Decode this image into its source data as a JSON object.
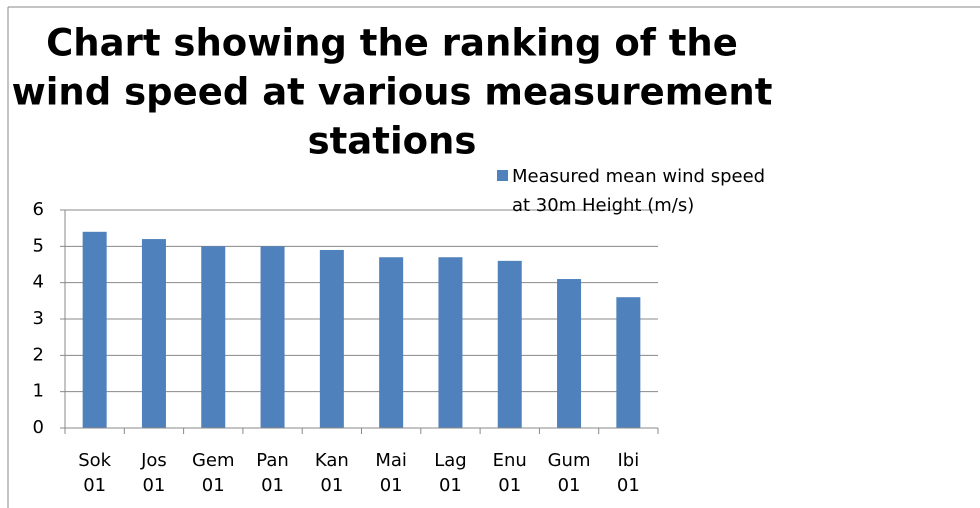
{
  "chart_data": {
    "type": "bar",
    "title_lines": [
      "Chart showing the ranking of the",
      "wind speed at various measurement",
      "stations"
    ],
    "categories": [
      "Sok 01",
      "Jos 01",
      "Gem 01",
      "Pan 01",
      "Kan 01",
      "Mai 01",
      "Lag 01",
      "Enu 01",
      "Gum 01",
      "Ibi 01"
    ],
    "series": [
      {
        "name": "Measured mean wind speed at 30m Height (m/s)",
        "color": "#4f81bd",
        "values": [
          5.4,
          5.2,
          5.0,
          5.0,
          4.9,
          4.7,
          4.7,
          4.6,
          4.1,
          3.6
        ]
      }
    ],
    "ylim": [
      0,
      6
    ],
    "yticks": [
      0,
      1,
      2,
      3,
      4,
      5,
      6
    ],
    "grid": true,
    "legend": "top-right"
  }
}
